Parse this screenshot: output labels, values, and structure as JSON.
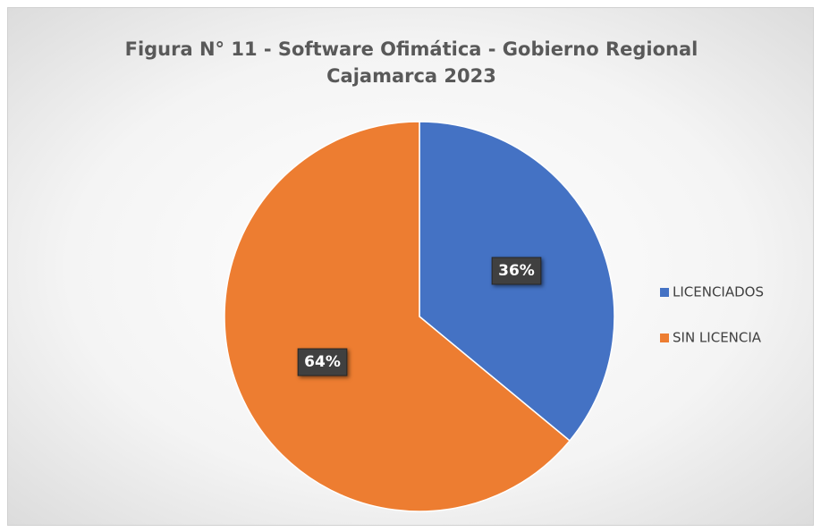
{
  "chart_data": {
    "type": "pie",
    "title": "Figura N° 11 - Software Ofimática - Gobierno Regional Cajamarca 2023",
    "categories": [
      "LICENCIADOS",
      "SIN LICENCIA"
    ],
    "values": [
      36,
      64
    ],
    "value_labels": [
      "36%",
      "64%"
    ],
    "colors": [
      "#4472c4",
      "#ed7d31"
    ],
    "legend": "right"
  }
}
